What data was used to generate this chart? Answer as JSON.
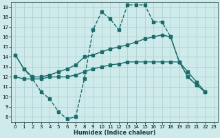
{
  "xlabel": "Humidex (Indice chaleur)",
  "background_color": "#ceeaea",
  "grid_color": "#aacccc",
  "line_color": "#1a6b6b",
  "xlim": [
    -0.5,
    23.5
  ],
  "ylim": [
    7.5,
    19.5
  ],
  "xticks": [
    0,
    1,
    2,
    3,
    4,
    5,
    6,
    7,
    8,
    9,
    10,
    11,
    12,
    13,
    14,
    15,
    16,
    17,
    18,
    19,
    20,
    21,
    22,
    23
  ],
  "yticks": [
    8,
    9,
    10,
    11,
    12,
    13,
    14,
    15,
    16,
    17,
    18,
    19
  ],
  "line1_x": [
    0,
    1,
    2,
    3,
    4,
    5,
    6,
    7,
    8,
    9,
    10,
    11,
    12,
    13,
    14,
    15,
    16,
    17,
    18,
    19,
    20,
    21,
    22
  ],
  "line1_y": [
    14.2,
    12.8,
    11.8,
    10.5,
    9.8,
    8.5,
    7.8,
    8.0,
    11.8,
    16.7,
    18.5,
    17.8,
    16.7,
    19.2,
    19.2,
    19.2,
    17.5,
    17.5,
    16.0,
    13.5,
    12.0,
    11.2,
    10.5
  ],
  "line2_x": [
    0,
    1,
    2,
    3,
    4,
    5,
    6,
    7,
    8,
    9,
    10,
    11,
    12,
    13,
    14,
    15,
    16,
    17,
    18,
    19,
    20,
    21,
    22
  ],
  "line2_y": [
    14.2,
    12.8,
    12.0,
    12.0,
    12.2,
    12.5,
    12.8,
    13.2,
    14.0,
    14.2,
    14.5,
    14.8,
    15.0,
    15.2,
    15.5,
    15.8,
    16.0,
    16.2,
    16.0,
    13.5,
    12.0,
    11.2,
    10.5
  ],
  "line3_x": [
    0,
    1,
    2,
    3,
    4,
    5,
    6,
    7,
    8,
    9,
    10,
    11,
    12,
    13,
    14,
    15,
    16,
    17,
    18,
    19,
    20,
    21,
    22
  ],
  "line3_y": [
    12.0,
    11.8,
    11.8,
    11.8,
    12.0,
    12.0,
    12.0,
    12.2,
    12.5,
    12.8,
    13.0,
    13.2,
    13.3,
    13.5,
    13.5,
    13.5,
    13.5,
    13.5,
    13.5,
    13.5,
    12.5,
    11.5,
    10.5
  ],
  "marker": "s",
  "marker_size": 2.5,
  "linewidth": 1.0
}
